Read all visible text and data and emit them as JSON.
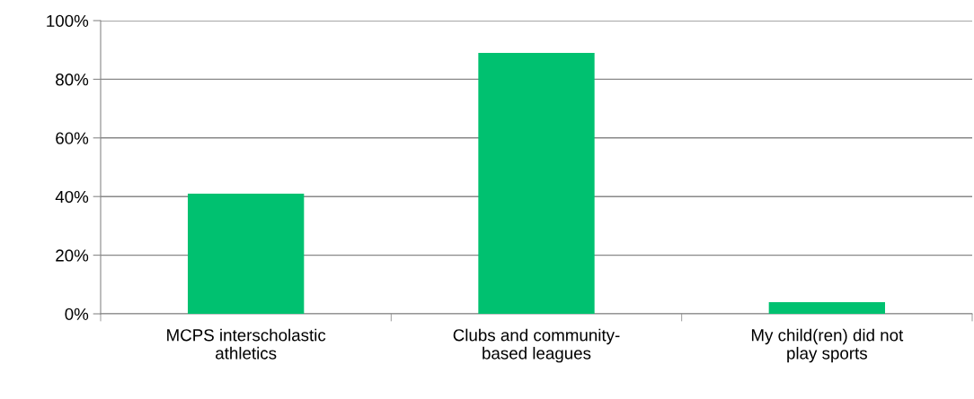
{
  "chart_data": {
    "type": "bar",
    "categories": [
      "MCPS interscholastic\nathletics",
      "Clubs and community-\nbased leagues",
      "My child(ren) did not\nplay sports"
    ],
    "values": [
      41,
      89,
      4
    ],
    "color": "#00c170",
    "ylim": [
      0,
      100
    ],
    "yticks": [
      {
        "value": 0,
        "label": "0%"
      },
      {
        "value": 20,
        "label": "20%"
      },
      {
        "value": 40,
        "label": "40%"
      },
      {
        "value": 60,
        "label": "60%"
      },
      {
        "value": 80,
        "label": "80%"
      },
      {
        "value": 100,
        "label": "100%"
      }
    ],
    "grid": "y"
  }
}
